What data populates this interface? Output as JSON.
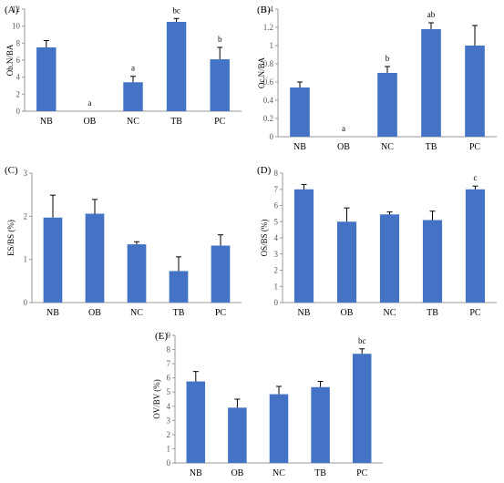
{
  "chart_data": [
    {
      "type": "bar",
      "panel_label": "(A)",
      "ylabel": "Ob.N/BA",
      "categories": [
        "NB",
        "OB",
        "NC",
        "TB",
        "PC"
      ],
      "values": [
        7.5,
        0,
        3.4,
        10.5,
        6.1
      ],
      "errors": [
        0.8,
        0,
        0.7,
        0.4,
        1.4
      ],
      "annotations": [
        "",
        "a",
        "a",
        "bc",
        "b"
      ],
      "ylim": [
        0,
        12
      ],
      "yticks": [
        0,
        2,
        4,
        6,
        8,
        10,
        12
      ],
      "ytick_labels": [
        "0",
        "2",
        "4",
        "6",
        "8",
        "10",
        "12"
      ],
      "bar_color": "#4472C4"
    },
    {
      "type": "bar",
      "panel_label": "(B)",
      "ylabel": "Oc.N/BA",
      "categories": [
        "NB",
        "OB",
        "NC",
        "TB",
        "PC"
      ],
      "values": [
        0.54,
        0,
        0.7,
        1.18,
        1.0
      ],
      "errors": [
        0.06,
        0,
        0.07,
        0.07,
        0.22
      ],
      "annotations": [
        "",
        "a",
        "b",
        "ab",
        ""
      ],
      "ylim": [
        0,
        1.4
      ],
      "yticks": [
        0,
        0.2,
        0.4,
        0.6,
        0.8,
        1.0,
        1.2,
        1.4
      ],
      "ytick_labels": [
        "0",
        "0.2",
        "0.4",
        "0.6",
        "0.8",
        "1",
        "1.2",
        "1.4"
      ],
      "bar_color": "#4472C4"
    },
    {
      "type": "bar",
      "panel_label": "(C)",
      "ylabel": "ES/BS (%)",
      "categories": [
        "NB",
        "OB",
        "NC",
        "TB",
        "PC"
      ],
      "values": [
        1.97,
        2.06,
        1.35,
        0.73,
        1.32
      ],
      "errors": [
        0.52,
        0.33,
        0.06,
        0.33,
        0.25
      ],
      "annotations": [
        "",
        "",
        "",
        "",
        ""
      ],
      "ylim": [
        0,
        3
      ],
      "yticks": [
        0,
        1,
        2,
        3
      ],
      "ytick_labels": [
        "0",
        "1",
        "2",
        "3"
      ],
      "bar_color": "#4472C4"
    },
    {
      "type": "bar",
      "panel_label": "(D)",
      "ylabel": "OS/BS (%)",
      "categories": [
        "NB",
        "OB",
        "NC",
        "TB",
        "PC"
      ],
      "values": [
        7.0,
        5.0,
        5.45,
        5.1,
        7.0
      ],
      "errors": [
        0.3,
        0.85,
        0.15,
        0.55,
        0.2
      ],
      "annotations": [
        "",
        "",
        "",
        "",
        "c"
      ],
      "ylim": [
        0,
        8
      ],
      "yticks": [
        0,
        1,
        2,
        3,
        4,
        5,
        6,
        7,
        8
      ],
      "ytick_labels": [
        "0",
        "1",
        "2",
        "3",
        "4",
        "5",
        "6",
        "7",
        "8"
      ],
      "bar_color": "#4472C4"
    },
    {
      "type": "bar",
      "panel_label": "(E)",
      "ylabel": "OV/BV (%)",
      "categories": [
        "NB",
        "OB",
        "NC",
        "TB",
        "PC"
      ],
      "values": [
        5.75,
        3.9,
        4.85,
        5.35,
        7.7
      ],
      "errors": [
        0.7,
        0.6,
        0.55,
        0.4,
        0.35
      ],
      "annotations": [
        "",
        "",
        "",
        "",
        "bc"
      ],
      "ylim": [
        0,
        9
      ],
      "yticks": [
        0,
        1,
        2,
        3,
        4,
        5,
        6,
        7,
        8,
        9
      ],
      "ytick_labels": [
        "0",
        "1",
        "2",
        "3",
        "4",
        "5",
        "6",
        "7",
        "8",
        "9"
      ],
      "bar_color": "#4472C4"
    }
  ]
}
